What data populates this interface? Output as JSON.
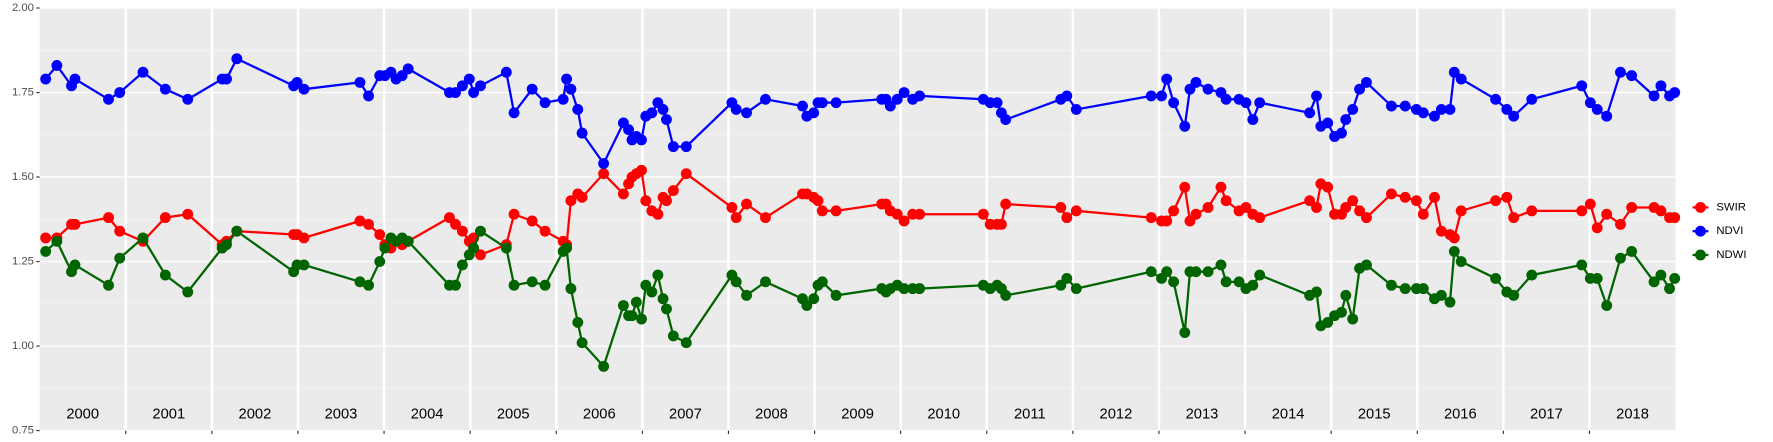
{
  "chart_data": {
    "type": "line",
    "x": [
      2000.07,
      2000.2,
      2000.37,
      2000.41,
      2000.8,
      2000.93,
      2001.2,
      2001.46,
      2001.72,
      2002.12,
      2002.17,
      2002.29,
      2002.95,
      2002.99,
      2003.07,
      2003.72,
      2003.82,
      2003.95,
      2004.01,
      2004.08,
      2004.14,
      2004.21,
      2004.28,
      2004.76,
      2004.83,
      2004.91,
      2004.99,
      2005.04,
      2005.12,
      2005.42,
      2005.51,
      2005.72,
      2005.87,
      2006.08,
      2006.12,
      2006.17,
      2006.25,
      2006.3,
      2006.55,
      2006.78,
      2006.84,
      2006.88,
      2006.93,
      2006.99,
      2007.04,
      2007.11,
      2007.18,
      2007.24,
      2007.28,
      2007.36,
      2007.51,
      2008.04,
      2008.09,
      2008.21,
      2008.43,
      2008.86,
      2008.91,
      2008.99,
      2009.04,
      2009.09,
      2009.25,
      2009.78,
      2009.83,
      2009.88,
      2009.96,
      2010.04,
      2010.14,
      2010.22,
      2010.96,
      2011.04,
      2011.12,
      2011.17,
      2011.22,
      2011.86,
      2011.93,
      2012.04,
      2012.91,
      2013.03,
      2013.09,
      2013.17,
      2013.3,
      2013.36,
      2013.43,
      2013.57,
      2013.72,
      2013.78,
      2013.93,
      2014.01,
      2014.09,
      2014.17,
      2014.75,
      2014.83,
      2014.88,
      2014.96,
      2015.04,
      2015.12,
      2015.17,
      2015.25,
      2015.33,
      2015.41,
      2015.7,
      2015.86,
      2015.99,
      2016.07,
      2016.2,
      2016.28,
      2016.38,
      2016.43,
      2016.51,
      2016.91,
      2017.04,
      2017.12,
      2017.33,
      2017.91,
      2018.01,
      2018.09,
      2018.2,
      2018.36,
      2018.49,
      2018.75,
      2018.83,
      2018.93,
      2018.99
    ],
    "series": [
      {
        "name": "SWIR",
        "color": "#ff0000",
        "values": [
          1.32,
          1.32,
          1.36,
          1.36,
          1.38,
          1.34,
          1.31,
          1.38,
          1.39,
          1.3,
          1.31,
          1.34,
          1.33,
          1.33,
          1.32,
          1.37,
          1.36,
          1.33,
          1.3,
          1.29,
          1.31,
          1.3,
          1.31,
          1.38,
          1.36,
          1.34,
          1.31,
          1.32,
          1.27,
          1.3,
          1.39,
          1.37,
          1.34,
          1.31,
          1.3,
          1.43,
          1.45,
          1.44,
          1.51,
          1.45,
          1.48,
          1.5,
          1.51,
          1.52,
          1.43,
          1.4,
          1.39,
          1.44,
          1.43,
          1.46,
          1.51,
          1.41,
          1.38,
          1.42,
          1.38,
          1.45,
          1.45,
          1.44,
          1.43,
          1.4,
          1.4,
          1.42,
          1.42,
          1.4,
          1.39,
          1.37,
          1.39,
          1.39,
          1.39,
          1.36,
          1.36,
          1.36,
          1.42,
          1.41,
          1.38,
          1.4,
          1.38,
          1.37,
          1.37,
          1.4,
          1.47,
          1.37,
          1.39,
          1.41,
          1.47,
          1.43,
          1.4,
          1.41,
          1.39,
          1.38,
          1.43,
          1.41,
          1.48,
          1.47,
          1.39,
          1.39,
          1.41,
          1.43,
          1.4,
          1.38,
          1.45,
          1.44,
          1.43,
          1.39,
          1.44,
          1.34,
          1.33,
          1.32,
          1.4,
          1.43,
          1.44,
          1.38,
          1.4,
          1.4,
          1.42,
          1.35,
          1.39,
          1.36,
          1.41,
          1.41,
          1.4,
          1.38,
          1.38
        ]
      },
      {
        "name": "NDVI",
        "color": "#0000ff",
        "values": [
          1.79,
          1.83,
          1.77,
          1.79,
          1.73,
          1.75,
          1.81,
          1.76,
          1.73,
          1.79,
          1.79,
          1.85,
          1.77,
          1.78,
          1.76,
          1.78,
          1.74,
          1.8,
          1.8,
          1.81,
          1.79,
          1.8,
          1.82,
          1.75,
          1.75,
          1.77,
          1.79,
          1.75,
          1.77,
          1.81,
          1.69,
          1.76,
          1.72,
          1.73,
          1.79,
          1.76,
          1.7,
          1.63,
          1.54,
          1.66,
          1.64,
          1.61,
          1.62,
          1.61,
          1.68,
          1.69,
          1.72,
          1.7,
          1.67,
          1.59,
          1.59,
          1.72,
          1.7,
          1.69,
          1.73,
          1.71,
          1.68,
          1.69,
          1.72,
          1.72,
          1.72,
          1.73,
          1.73,
          1.71,
          1.73,
          1.75,
          1.73,
          1.74,
          1.73,
          1.72,
          1.72,
          1.69,
          1.67,
          1.73,
          1.74,
          1.7,
          1.74,
          1.74,
          1.79,
          1.72,
          1.65,
          1.76,
          1.78,
          1.76,
          1.75,
          1.73,
          1.73,
          1.72,
          1.67,
          1.72,
          1.69,
          1.74,
          1.65,
          1.66,
          1.62,
          1.63,
          1.67,
          1.7,
          1.76,
          1.78,
          1.71,
          1.71,
          1.7,
          1.69,
          1.68,
          1.7,
          1.7,
          1.81,
          1.79,
          1.73,
          1.7,
          1.68,
          1.73,
          1.77,
          1.72,
          1.7,
          1.68,
          1.81,
          1.8,
          1.74,
          1.77,
          1.74,
          1.75
        ]
      },
      {
        "name": "NDWI",
        "color": "#006400",
        "values": [
          1.28,
          1.31,
          1.22,
          1.24,
          1.18,
          1.26,
          1.32,
          1.21,
          1.16,
          1.29,
          1.3,
          1.34,
          1.22,
          1.24,
          1.24,
          1.19,
          1.18,
          1.25,
          1.29,
          1.32,
          1.31,
          1.32,
          1.31,
          1.18,
          1.18,
          1.24,
          1.27,
          1.29,
          1.34,
          1.29,
          1.18,
          1.19,
          1.18,
          1.28,
          1.29,
          1.17,
          1.07,
          1.01,
          0.94,
          1.12,
          1.09,
          1.09,
          1.13,
          1.08,
          1.18,
          1.16,
          1.21,
          1.14,
          1.11,
          1.03,
          1.01,
          1.21,
          1.19,
          1.15,
          1.19,
          1.14,
          1.12,
          1.14,
          1.18,
          1.19,
          1.15,
          1.17,
          1.16,
          1.17,
          1.18,
          1.17,
          1.17,
          1.17,
          1.18,
          1.17,
          1.18,
          1.17,
          1.15,
          1.18,
          1.2,
          1.17,
          1.22,
          1.2,
          1.22,
          1.19,
          1.04,
          1.22,
          1.22,
          1.22,
          1.24,
          1.19,
          1.19,
          1.17,
          1.18,
          1.21,
          1.15,
          1.16,
          1.06,
          1.07,
          1.09,
          1.1,
          1.15,
          1.08,
          1.23,
          1.24,
          1.18,
          1.17,
          1.17,
          1.17,
          1.14,
          1.15,
          1.13,
          1.28,
          1.25,
          1.2,
          1.16,
          1.15,
          1.21,
          1.24,
          1.2,
          1.2,
          1.12,
          1.26,
          1.28,
          1.19,
          1.21,
          1.17,
          1.2
        ]
      }
    ],
    "year_labels": [
      "2000",
      "2001",
      "2002",
      "2003",
      "2004",
      "2005",
      "2006",
      "2007",
      "2008",
      "2009",
      "2010",
      "2011",
      "2012",
      "2013",
      "2014",
      "2015",
      "2016",
      "2017",
      "2018"
    ],
    "xlim": [
      2000,
      2019
    ],
    "xticks": [
      2001,
      2002,
      2003,
      2004,
      2005,
      2006,
      2007,
      2008,
      2009,
      2010,
      2011,
      2012,
      2013,
      2014,
      2015,
      2016,
      2017,
      2018
    ],
    "ylim": [
      0.75,
      2.0
    ],
    "yticks": [
      {
        "value": 0.75,
        "label": "0.75"
      },
      {
        "value": 1.0,
        "label": "1.00"
      },
      {
        "value": 1.25,
        "label": "1.25"
      },
      {
        "value": 1.5,
        "label": "1.50"
      },
      {
        "value": 1.75,
        "label": "1.75"
      },
      {
        "value": 2.0,
        "label": "2.00"
      }
    ],
    "grid": true,
    "legend": "right"
  }
}
